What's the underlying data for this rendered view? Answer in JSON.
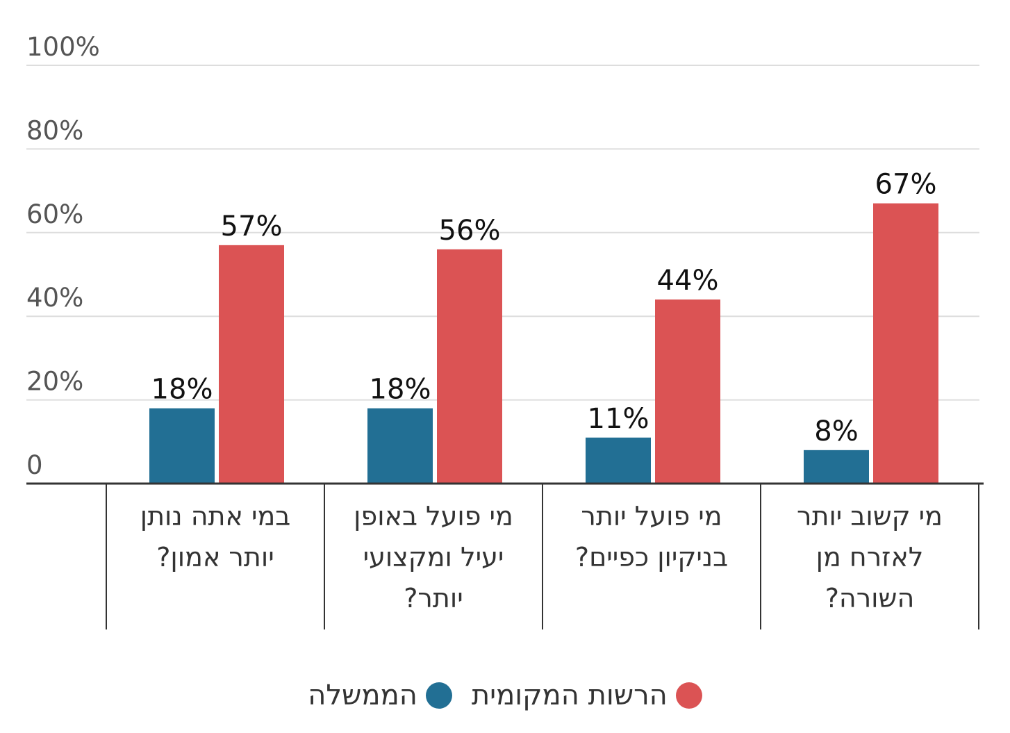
{
  "chart_data": {
    "type": "bar",
    "categories": [
      [
        "במי אתה נותן",
        "יותר אמון?"
      ],
      [
        "מי פועל באופן",
        "יעיל ומקצועי",
        "יותר?"
      ],
      [
        "מי פועל יותר",
        "בניקיון כפיים?"
      ],
      [
        "מי קשוב יותר",
        "לאזרח מן",
        "השורה?"
      ]
    ],
    "series": [
      {
        "name": "הממשלה",
        "color": "#226f94",
        "values": [
          18,
          18,
          11,
          8
        ],
        "labels": [
          "18%",
          "18%",
          "11%",
          "8%"
        ]
      },
      {
        "name": "הרשות המקומית",
        "color": "#db5354",
        "values": [
          57,
          56,
          44,
          67
        ],
        "labels": [
          "57%",
          "56%",
          "44%",
          "67%"
        ]
      }
    ],
    "ylim": [
      0,
      100
    ],
    "yticks": [
      {
        "value": 0,
        "label": "0"
      },
      {
        "value": 20,
        "label": "20%"
      },
      {
        "value": 40,
        "label": "40%"
      },
      {
        "value": 60,
        "label": "60%"
      },
      {
        "value": 80,
        "label": "80%"
      },
      {
        "value": 100,
        "label": "100%"
      }
    ],
    "grid": true,
    "legend_position": "bottom-center"
  }
}
